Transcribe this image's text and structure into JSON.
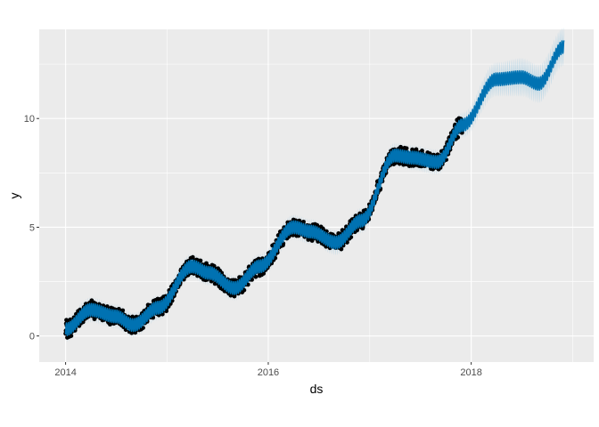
{
  "chart_data": {
    "type": "line",
    "title": "",
    "xlabel": "ds",
    "ylabel": "y",
    "x_type": "date",
    "xlim": [
      "2013-09-28",
      "2019-03-18"
    ],
    "ylim": [
      -1.2,
      14.1
    ],
    "x_ticks": [
      {
        "value": "2014-01-01",
        "label": "2014"
      },
      {
        "value": "2016-01-01",
        "label": "2016"
      },
      {
        "value": "2018-01-01",
        "label": "2018"
      }
    ],
    "y_ticks": [
      {
        "value": 0,
        "label": "0"
      },
      {
        "value": 5,
        "label": "5"
      },
      {
        "value": 10,
        "label": "10"
      }
    ],
    "grid": true,
    "legend": "none",
    "colors": {
      "panel_background": "#ebebeb",
      "grid": "#ffffff",
      "observed_points": "#000000",
      "forecast_line": "#0072b2",
      "forecast_interval": "#a6cee3"
    },
    "series": [
      {
        "kind": "observed",
        "style": "points",
        "x_start": "2014-01-01",
        "x_end": "2017-12-01",
        "x": [
          "2014-01-01",
          "2014-04-01",
          "2014-07-01",
          "2014-09-01",
          "2014-12-01",
          "2015-04-01",
          "2015-06-01",
          "2015-09-01",
          "2015-12-01",
          "2016-04-01",
          "2016-06-01",
          "2016-09-01",
          "2016-12-01",
          "2017-04-01",
          "2017-06-01",
          "2017-09-01",
          "2017-12-01"
        ],
        "y": [
          0.3,
          1.2,
          0.9,
          0.5,
          1.3,
          3.2,
          2.9,
          2.2,
          3.2,
          5.0,
          4.8,
          4.3,
          5.3,
          8.3,
          8.2,
          8.0,
          9.7
        ]
      },
      {
        "kind": "forecast",
        "style": "line",
        "x": [
          "2014-01-01",
          "2014-04-01",
          "2014-07-01",
          "2014-09-01",
          "2014-12-01",
          "2015-04-01",
          "2015-06-01",
          "2015-09-01",
          "2015-12-01",
          "2016-04-01",
          "2016-06-01",
          "2016-09-01",
          "2016-12-01",
          "2017-04-01",
          "2017-06-01",
          "2017-09-01",
          "2017-12-01",
          "2018-04-01",
          "2018-07-01",
          "2018-09-01",
          "2018-12-01"
        ],
        "y": [
          0.3,
          1.2,
          0.9,
          0.5,
          1.3,
          3.2,
          2.9,
          2.2,
          3.2,
          5.0,
          4.8,
          4.3,
          5.3,
          8.3,
          8.2,
          8.0,
          9.7,
          11.8,
          11.9,
          11.6,
          13.3
        ],
        "lower": [
          0.0,
          0.9,
          0.6,
          0.2,
          1.0,
          2.9,
          2.6,
          1.9,
          2.9,
          4.7,
          4.5,
          4.0,
          5.0,
          8.0,
          7.9,
          7.7,
          9.4,
          11.3,
          11.3,
          11.0,
          12.7
        ],
        "upper": [
          0.6,
          1.5,
          1.2,
          0.8,
          1.6,
          3.5,
          3.2,
          2.5,
          3.5,
          5.3,
          5.1,
          4.6,
          5.6,
          8.6,
          8.5,
          8.3,
          10.0,
          12.3,
          12.5,
          12.2,
          13.9
        ]
      }
    ]
  }
}
